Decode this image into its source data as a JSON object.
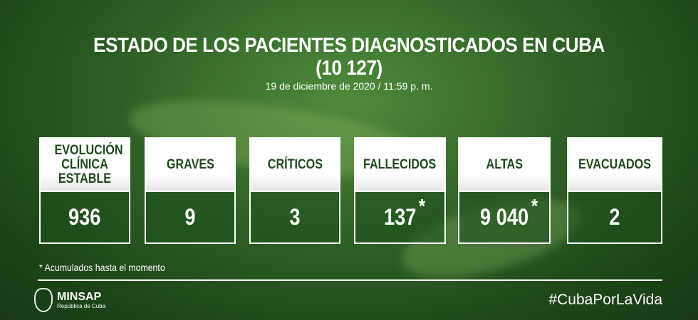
{
  "title_line1": "ESTADO DE LOS PACIENTES DIAGNOSTICADOS EN CUBA",
  "title_line2": "(10 127)",
  "date": "19 de diciembre de 2020 / 11:59 p. m.",
  "cards": [
    {
      "label": "EVOLUCIÓN CLÍNICA ESTABLE",
      "value": "936",
      "asterisk": ""
    },
    {
      "label": "GRAVES",
      "value": "9",
      "asterisk": ""
    },
    {
      "label": "CRÍTICOS",
      "value": "3",
      "asterisk": ""
    },
    {
      "label": "FALLECIDOS",
      "value": "137",
      "asterisk": "*"
    },
    {
      "label": "ALTAS",
      "value": "9 040",
      "asterisk": "*"
    },
    {
      "label": "EVACUADOS",
      "value": "2",
      "asterisk": ""
    }
  ],
  "footnote": "* Acumulados hasta el momento",
  "logo": {
    "name": "MINSAP",
    "subtitle": "República de Cuba"
  },
  "hashtag": "#CubaPorLaVida",
  "colors": {
    "background": "#2f6126",
    "header_text": "#1e4a1c"
  }
}
